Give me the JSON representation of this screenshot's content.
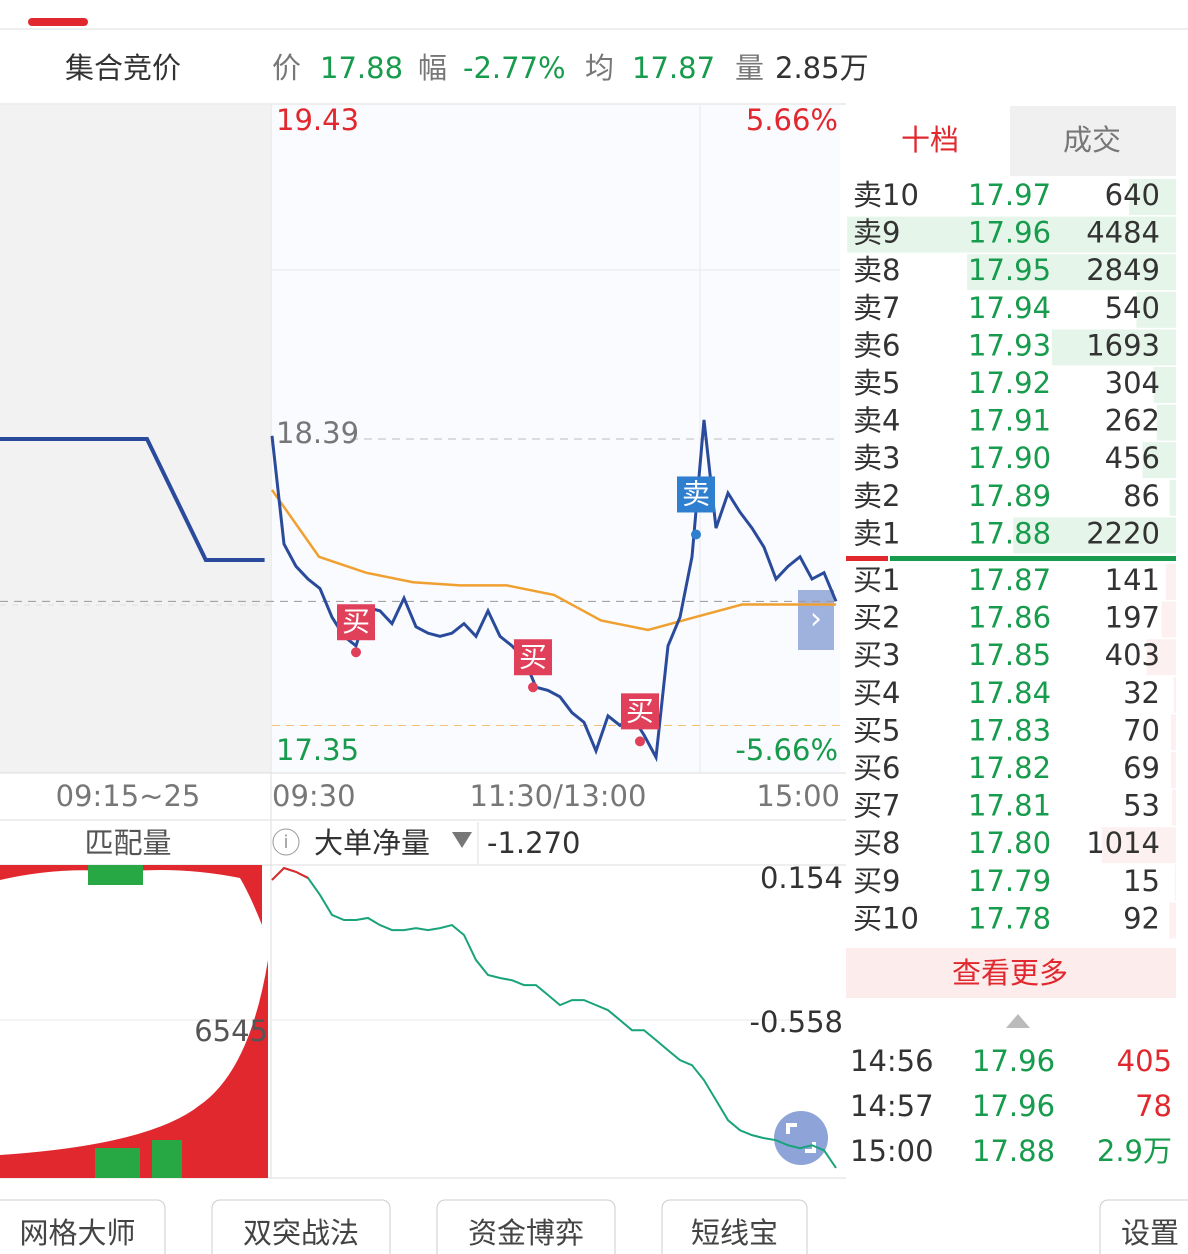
{
  "quote": {
    "title": "集合竞价",
    "price_label": "价",
    "price": 17.88,
    "change_label": "幅",
    "change": "-2.77%",
    "avg_label": "均",
    "avg": 17.87,
    "volume_label": "量",
    "volume": "2.85万"
  },
  "price_chart": {
    "ylim": [
      17.35,
      19.43
    ],
    "yticks": [
      17.35,
      18.39,
      19.43
    ],
    "pct_ticks": [
      {
        "value": 19.43,
        "label": "5.66%"
      },
      {
        "value": 17.35,
        "label": "-5.66%"
      }
    ],
    "low_line": 17.49,
    "time_labels": [
      "09:15~25",
      "09:30",
      "11:30/13:00",
      "15:00"
    ],
    "auction_price": [
      18.39,
      18.39,
      18.39,
      18.39,
      18.39,
      18.39,
      18.2,
      18.01,
      18.01,
      18.01
    ],
    "price": [
      18.4,
      18.06,
      17.99,
      17.95,
      17.92,
      17.83,
      17.77,
      17.74,
      17.86,
      17.85,
      17.81,
      17.89,
      17.8,
      17.78,
      17.77,
      17.78,
      17.81,
      17.77,
      17.85,
      17.77,
      17.74,
      17.7,
      17.61,
      17.6,
      17.58,
      17.53,
      17.5,
      17.41,
      17.52,
      17.49,
      17.52,
      17.46,
      17.39,
      17.74,
      17.83,
      18.02,
      18.45,
      18.11,
      18.22,
      18.16,
      18.11,
      18.05,
      17.95,
      17.99,
      18.02,
      17.95,
      17.97,
      17.88
    ],
    "avg": [
      18.23,
      18.02,
      17.97,
      17.94,
      17.93,
      17.93,
      17.9,
      17.82,
      17.79,
      17.83,
      17.87,
      17.87,
      17.87
    ],
    "signals": [
      {
        "label": "买",
        "price": 17.72
      },
      {
        "label": "买",
        "price": 17.61
      },
      {
        "label": "买",
        "price": 17.44
      },
      {
        "label": "卖",
        "price": 18.09
      }
    ]
  },
  "volume_panel": {
    "left_title": "匹配量",
    "left_value": 6545,
    "indicator": "大单净量",
    "indicator_value": "-1.270",
    "ylim": [
      -1.32,
      0.228
    ],
    "yticks": [
      0.154,
      -0.558
    ],
    "values": [
      0.154,
      0.213,
      0.194,
      0.164,
      0.08,
      -0.019,
      -0.044,
      -0.044,
      -0.034,
      -0.069,
      -0.094,
      -0.094,
      -0.084,
      -0.094,
      -0.084,
      -0.069,
      -0.118,
      -0.242,
      -0.316,
      -0.331,
      -0.342,
      -0.366,
      -0.366,
      -0.415,
      -0.465,
      -0.44,
      -0.44,
      -0.465,
      -0.49,
      -0.539,
      -0.589,
      -0.589,
      -0.638,
      -0.688,
      -0.737,
      -0.762,
      -0.836,
      -0.935,
      -1.034,
      -1.084,
      -1.108,
      -1.123,
      -1.133,
      -1.158,
      -1.173,
      -1.158,
      -1.183,
      -1.27
    ]
  },
  "order_book": {
    "tabs": [
      "十档",
      "成交"
    ],
    "asks": [
      {
        "label": "卖10",
        "price": "17.97",
        "volume": 640
      },
      {
        "label": "卖9",
        "price": "17.96",
        "volume": 4484
      },
      {
        "label": "卖8",
        "price": "17.95",
        "volume": 2849
      },
      {
        "label": "卖7",
        "price": "17.94",
        "volume": 540
      },
      {
        "label": "卖6",
        "price": "17.93",
        "volume": 1693
      },
      {
        "label": "卖5",
        "price": "17.92",
        "volume": 304
      },
      {
        "label": "卖4",
        "price": "17.91",
        "volume": 262
      },
      {
        "label": "卖3",
        "price": "17.90",
        "volume": 456
      },
      {
        "label": "卖2",
        "price": "17.89",
        "volume": 86
      },
      {
        "label": "卖1",
        "price": "17.88",
        "volume": 2220
      }
    ],
    "bids": [
      {
        "label": "买1",
        "price": "17.87",
        "volume": 141
      },
      {
        "label": "买2",
        "price": "17.86",
        "volume": 197
      },
      {
        "label": "买3",
        "price": "17.85",
        "volume": 403
      },
      {
        "label": "买4",
        "price": "17.84",
        "volume": 32
      },
      {
        "label": "买5",
        "price": "17.83",
        "volume": 70
      },
      {
        "label": "买6",
        "price": "17.82",
        "volume": 69
      },
      {
        "label": "买7",
        "price": "17.81",
        "volume": 53
      },
      {
        "label": "买8",
        "price": "17.80",
        "volume": 1014
      },
      {
        "label": "买9",
        "price": "17.79",
        "volume": 15
      },
      {
        "label": "买10",
        "price": "17.78",
        "volume": 92
      }
    ],
    "more": "查看更多"
  },
  "trades": [
    {
      "time": "14:56",
      "price": "17.96",
      "volume": "405",
      "color": "#e0282e"
    },
    {
      "time": "14:57",
      "price": "17.96",
      "volume": "78",
      "color": "#e0282e"
    },
    {
      "time": "15:00",
      "price": "17.88",
      "volume": "2.9万",
      "color": "#179b4c"
    }
  ],
  "bottom_bar": [
    "网格大师",
    "双突战法",
    "资金博弈",
    "短线宝",
    "设置"
  ]
}
